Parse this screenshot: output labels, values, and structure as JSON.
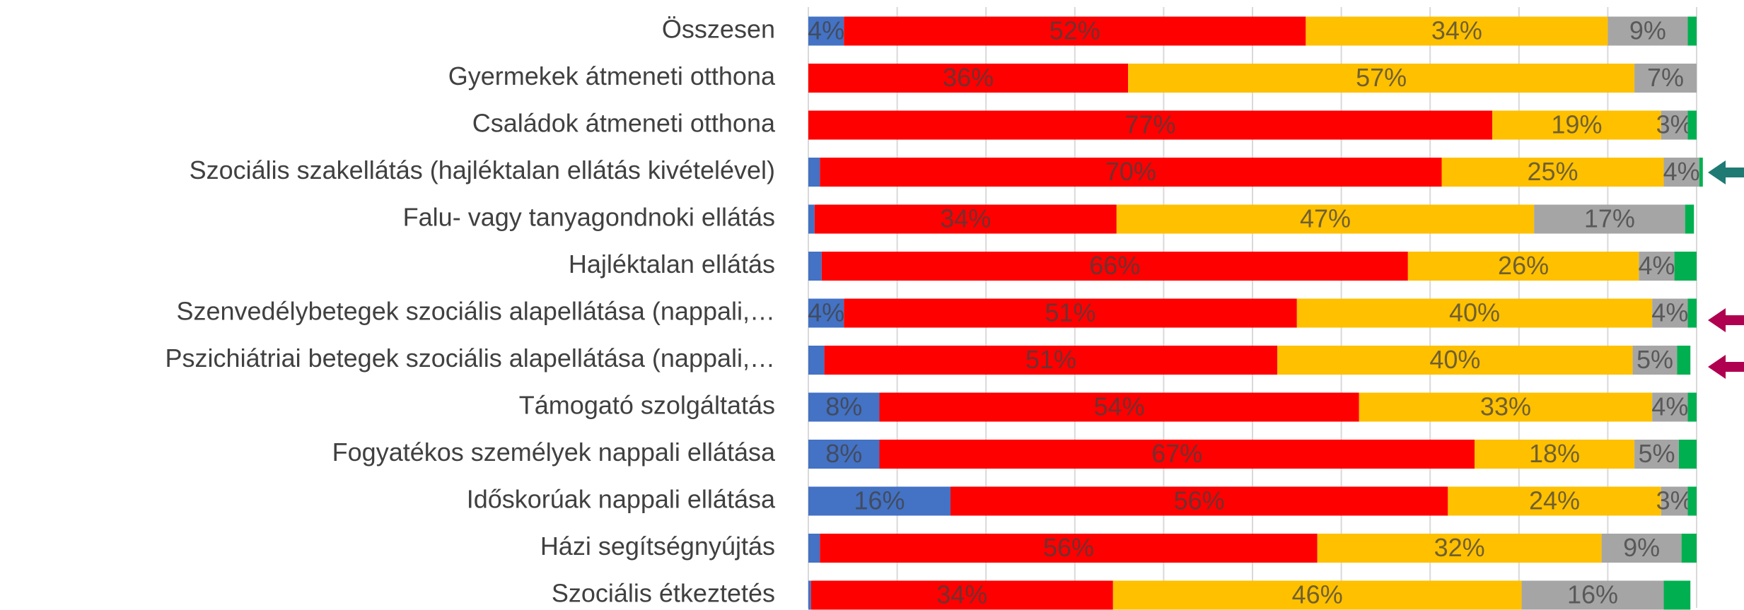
{
  "chart_data": {
    "type": "stacked_barh",
    "categories": [
      "Összesen",
      "Gyermekek átmeneti otthona",
      "Családok átmeneti otthona",
      "Szociális szakellátás (hajléktalan ellátás kivételével)",
      "Falu- vagy tanyagondnoki ellátás",
      "Hajléktalan ellátás",
      "Szenvedélybetegek szociális alapellátása (nappali,…",
      "Pszichiátriai betegek szociális alapellátása (nappali,…",
      "Támogató szolgáltatás",
      "Fogyatékos személyek nappali ellátása",
      "Időskorúak nappali ellátása",
      "Házi segítségnyújtás",
      "Szociális étkeztetés"
    ],
    "series": [
      {
        "color": "#4472c4",
        "values": [
          4,
          0,
          0,
          1.3,
          0.7,
          1.5,
          4,
          1.8,
          8,
          8,
          16,
          1.3,
          0.3
        ],
        "value_labels": [
          "4%",
          null,
          null,
          null,
          null,
          null,
          "4%",
          null,
          "8%",
          "8%",
          "16%",
          null,
          null
        ]
      },
      {
        "color": "#ff0000",
        "values": [
          52,
          36,
          77,
          70,
          34,
          66,
          51,
          51,
          54,
          67,
          56,
          56,
          34
        ],
        "value_labels": [
          "52%",
          "36%",
          "77%",
          "70%",
          "34%",
          "66%",
          "51%",
          "51%",
          "54%",
          "67%",
          "56%",
          "56%",
          "34%"
        ]
      },
      {
        "color": "#ffc000",
        "values": [
          34,
          57,
          19,
          25,
          47,
          26,
          40,
          40,
          33,
          18,
          24,
          32,
          46
        ],
        "value_labels": [
          "34%",
          "57%",
          "19%",
          "25%",
          "47%",
          "26%",
          "40%",
          "40%",
          "33%",
          "18%",
          "24%",
          "32%",
          "46%"
        ]
      },
      {
        "color": "#a5a5a5",
        "values": [
          9,
          7,
          3,
          4,
          17,
          4,
          4,
          5,
          4,
          5,
          3,
          9,
          16
        ],
        "value_labels": [
          "9%",
          "7%",
          "3%",
          "4%",
          "17%",
          "4%",
          "4%",
          "5%",
          "4%",
          "5%",
          "3%",
          "9%",
          "16%"
        ]
      },
      {
        "color": "#00b050",
        "values": [
          1,
          0,
          1,
          0.4,
          1,
          2.5,
          1,
          1.5,
          1,
          2,
          1,
          1.7,
          3
        ],
        "value_labels": [
          null,
          null,
          null,
          null,
          null,
          null,
          null,
          null,
          null,
          null,
          null,
          null,
          null
        ]
      }
    ],
    "xlim": [
      0,
      100
    ],
    "xticks": [
      0,
      10,
      20,
      30,
      40,
      50,
      60,
      70,
      80,
      90,
      100
    ],
    "grid": true
  }
}
